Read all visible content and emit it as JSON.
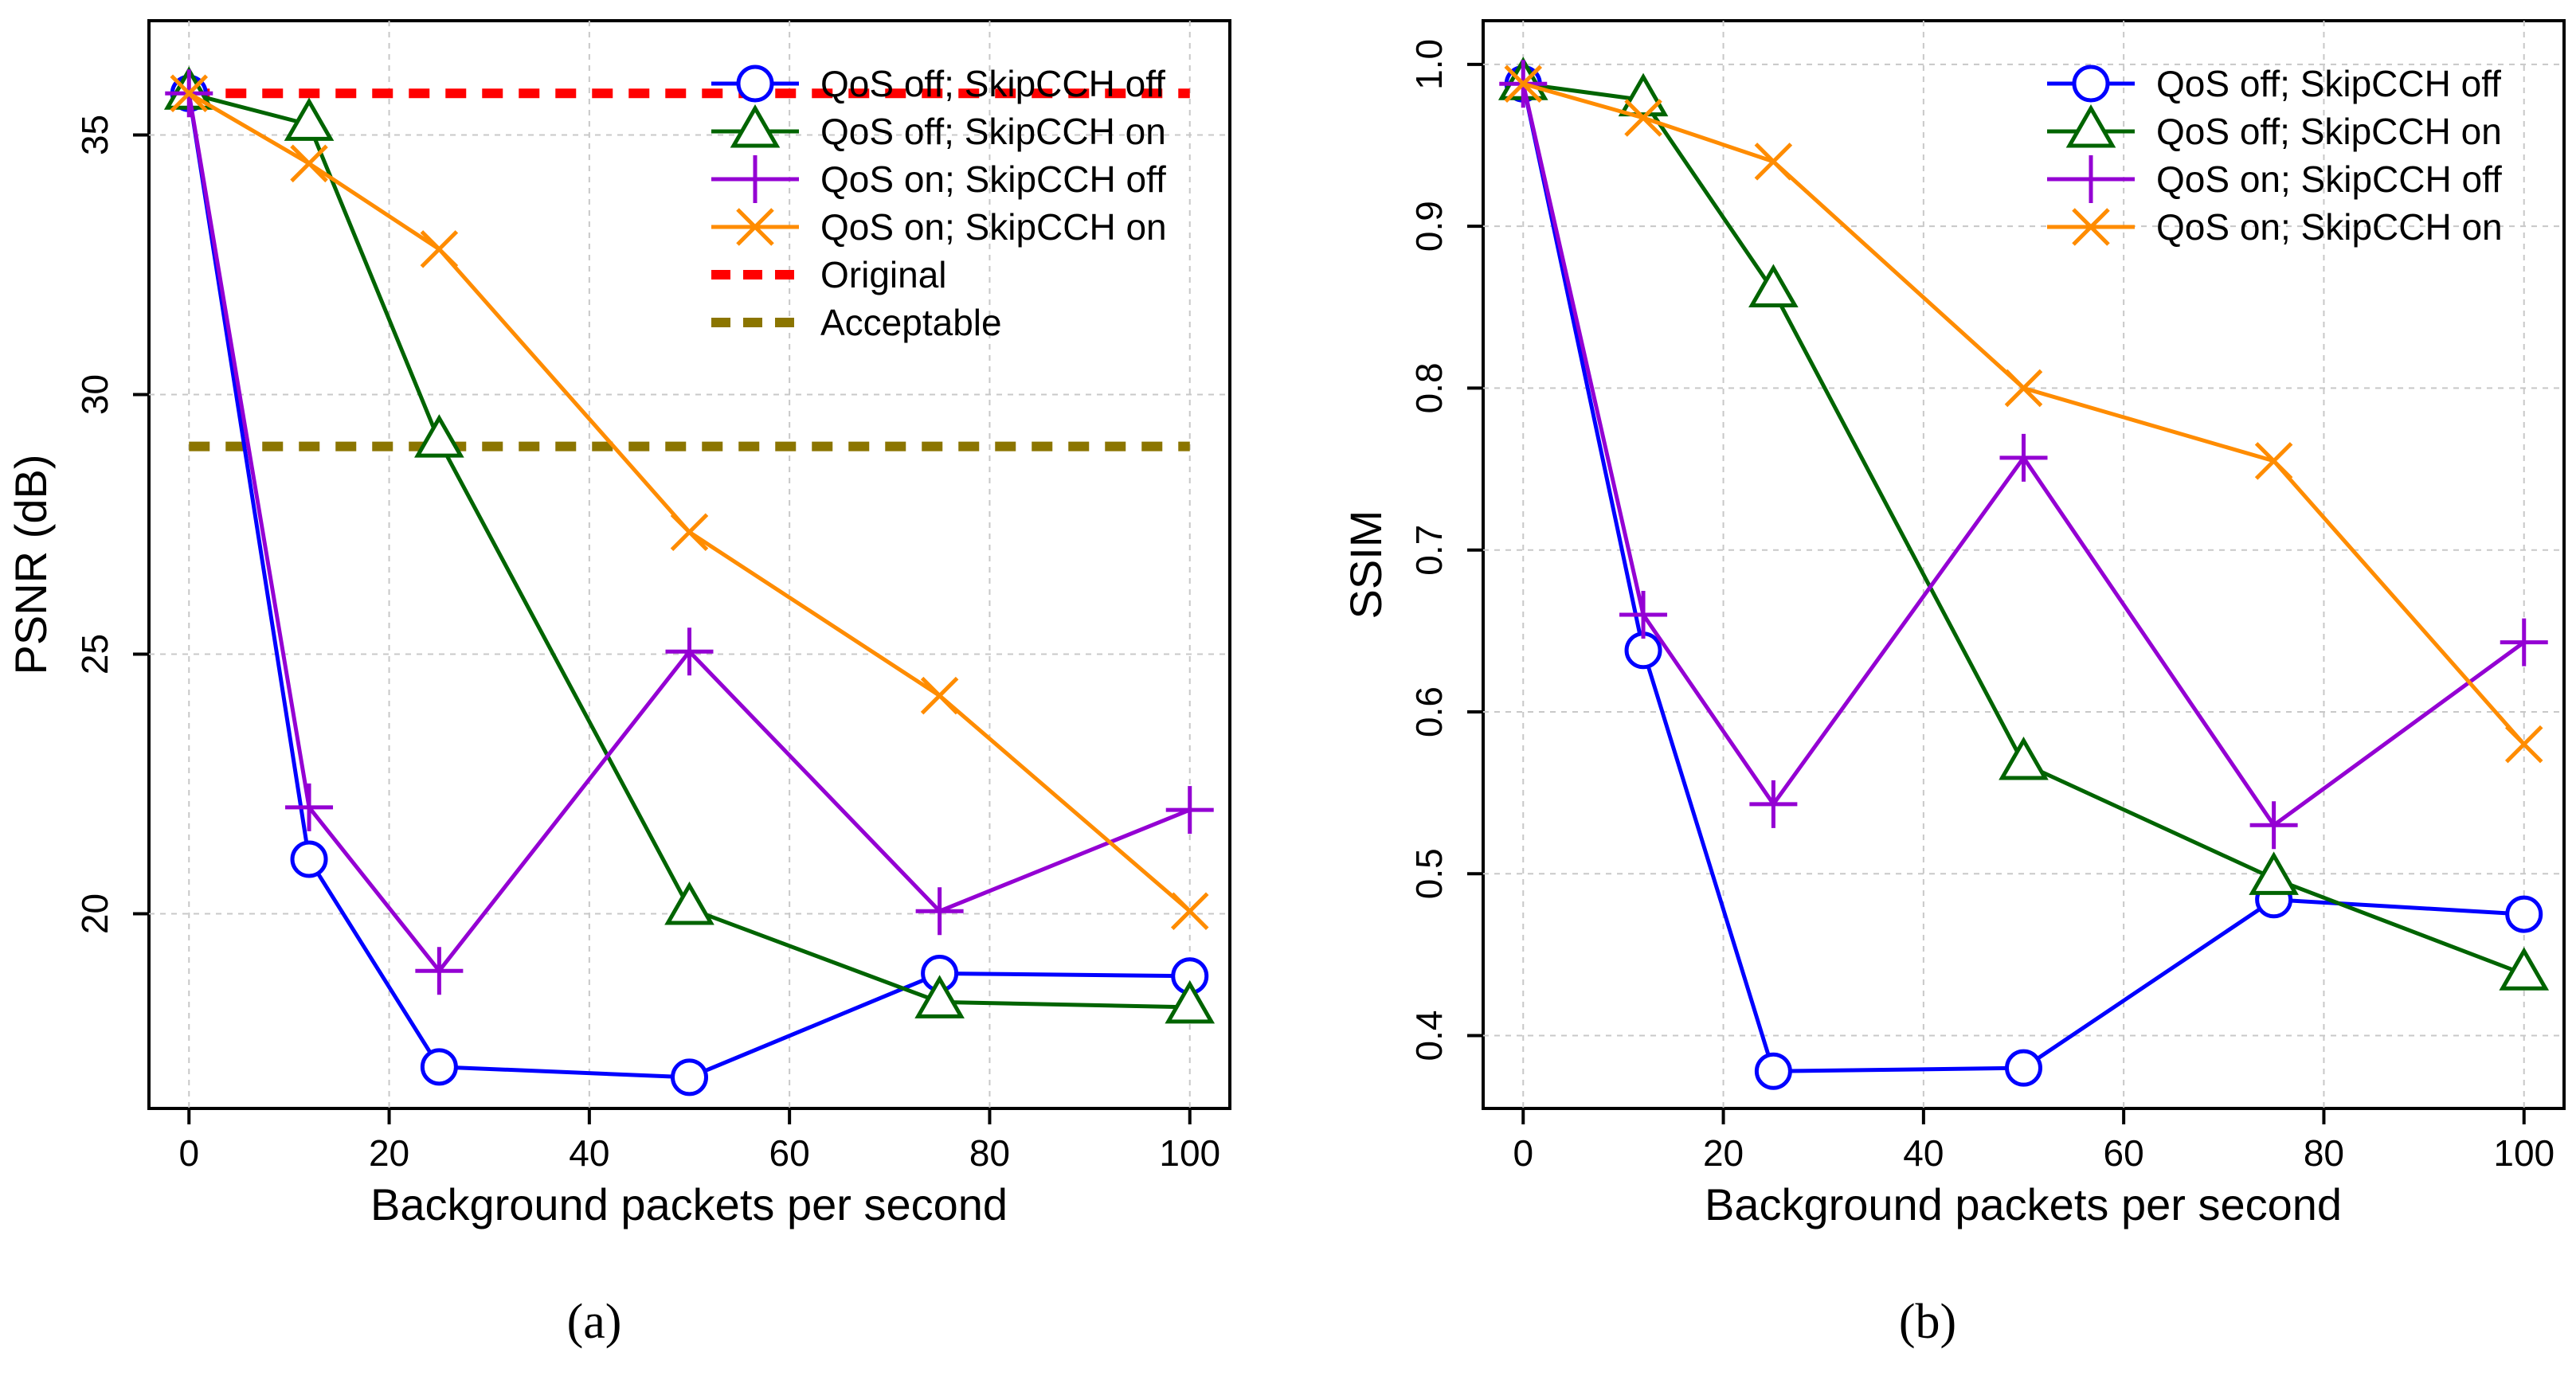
{
  "chart_data": [
    {
      "type": "line",
      "title": "",
      "panel_label": "(a)",
      "xlabel": "Background packets per second",
      "ylabel": "PSNR (dB)",
      "xlim": [
        -4,
        104
      ],
      "ylim": [
        16.25,
        37.2
      ],
      "xticks": [
        0,
        20,
        40,
        60,
        80,
        100
      ],
      "yticks": [
        20,
        25,
        30,
        35
      ],
      "grid": true,
      "legend_position": "top-right",
      "x": [
        0,
        12,
        25,
        50,
        75,
        100
      ],
      "series": [
        {
          "name": "QoS off; SkipCCH off",
          "color": "#0000ff",
          "marker": "circle",
          "values": [
            35.8,
            21.05,
            17.05,
            16.85,
            18.85,
            18.8
          ]
        },
        {
          "name": "QoS off; SkipCCH on",
          "color": "#006400",
          "marker": "triangle",
          "values": [
            35.8,
            35.2,
            29.1,
            20.1,
            18.3,
            18.2
          ]
        },
        {
          "name": "QoS on; SkipCCH off",
          "color": "#9400d3",
          "marker": "plus",
          "values": [
            35.8,
            22.05,
            18.9,
            25.05,
            20.05,
            22.0
          ]
        },
        {
          "name": "QoS on; SkipCCH on",
          "color": "#ff8c00",
          "marker": "cross",
          "values": [
            35.8,
            34.45,
            32.8,
            27.35,
            24.2,
            20.05
          ]
        }
      ],
      "reference_lines": [
        {
          "name": "Original",
          "color": "#ff0000",
          "value": 35.8,
          "x_range": [
            0,
            100
          ]
        },
        {
          "name": "Acceptable",
          "color": "#8b7500",
          "value": 29.0,
          "x_range": [
            0,
            100
          ]
        }
      ]
    },
    {
      "type": "line",
      "title": "",
      "panel_label": "(b)",
      "xlabel": "Background packets per second",
      "ylabel": "SSIM",
      "xlim": [
        -4,
        104
      ],
      "ylim": [
        0.355,
        1.027
      ],
      "xticks": [
        0,
        20,
        40,
        60,
        80,
        100
      ],
      "yticks": [
        0.4,
        0.5,
        0.6,
        0.7,
        0.8,
        0.9,
        1.0
      ],
      "ytick_labels": [
        "0.4",
        "0.5",
        "0.6",
        "0.7",
        "0.8",
        "0.9",
        "1.0"
      ],
      "grid": true,
      "legend_position": "top-right",
      "x": [
        0,
        12,
        25,
        50,
        75,
        100
      ],
      "series": [
        {
          "name": "QoS off; SkipCCH off",
          "color": "#0000ff",
          "marker": "circle",
          "values": [
            0.988,
            0.638,
            0.378,
            0.38,
            0.484,
            0.475
          ]
        },
        {
          "name": "QoS off; SkipCCH on",
          "color": "#006400",
          "marker": "triangle",
          "values": [
            0.988,
            0.978,
            0.86,
            0.568,
            0.497,
            0.438
          ]
        },
        {
          "name": "QoS on; SkipCCH off",
          "color": "#9400d3",
          "marker": "plus",
          "values": [
            0.988,
            0.66,
            0.543,
            0.757,
            0.53,
            0.643
          ]
        },
        {
          "name": "QoS on; SkipCCH on",
          "color": "#ff8c00",
          "marker": "cross",
          "values": [
            0.988,
            0.967,
            0.94,
            0.8,
            0.755,
            0.58
          ]
        }
      ],
      "reference_lines": []
    }
  ]
}
